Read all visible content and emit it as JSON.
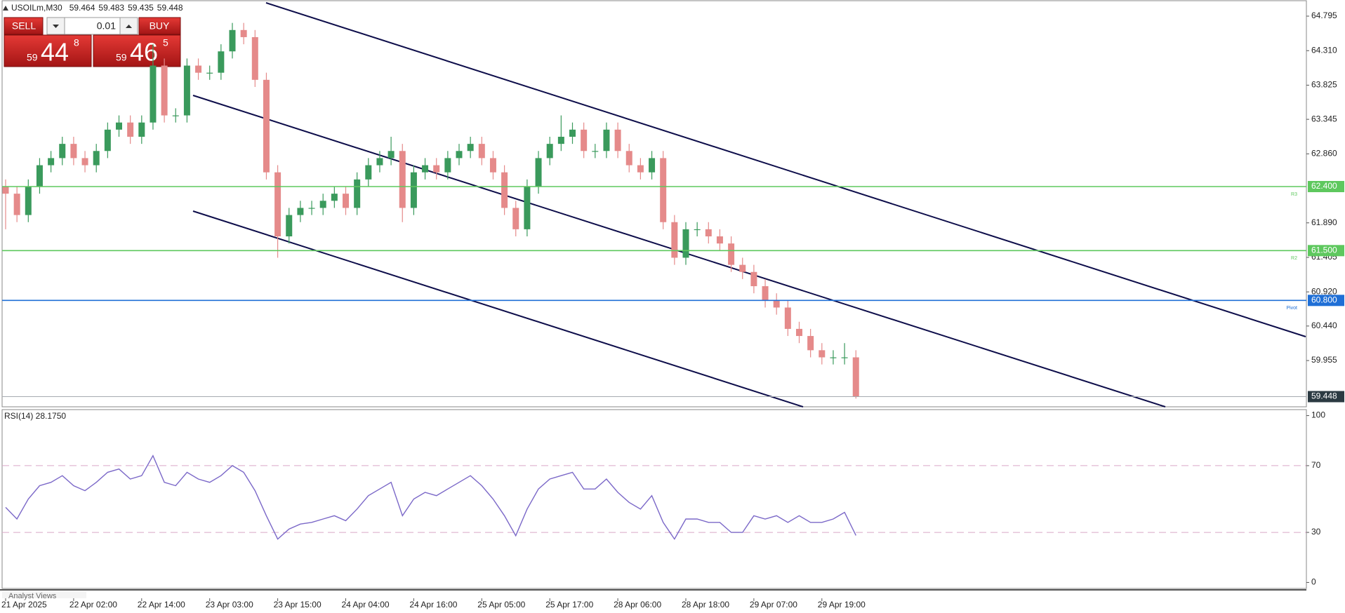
{
  "header": {
    "symbol": "USOILm,M30",
    "ohlc": [
      59.464,
      59.483,
      59.435,
      59.448
    ]
  },
  "trade_panel": {
    "sell": "SELL",
    "lot": "0.01",
    "buy": "BUY",
    "sell_price": [
      "59",
      "44",
      "8"
    ],
    "buy_price": [
      "59",
      "46",
      "5"
    ]
  },
  "chart_data": [
    {
      "type": "candlestick",
      "categories": [
        "21 Apr 2025",
        null,
        null,
        null,
        null,
        null,
        "22 Apr 02:00",
        null,
        null,
        null,
        null,
        null,
        "22 Apr 14:00",
        null,
        null,
        null,
        null,
        null,
        "23 Apr 03:00",
        null,
        null,
        null,
        null,
        null,
        "23 Apr 15:00",
        null,
        null,
        null,
        null,
        null,
        "24 Apr 04:00",
        null,
        null,
        null,
        null,
        null,
        "24 Apr 16:00",
        null,
        null,
        null,
        null,
        null,
        "25 Apr 05:00",
        null,
        null,
        null,
        null,
        null,
        "25 Apr 17:00",
        null,
        null,
        null,
        null,
        null,
        "28 Apr 06:00",
        null,
        null,
        null,
        null,
        null,
        "28 Apr 18:00",
        null,
        null,
        null,
        null,
        null,
        "29 Apr 07:00",
        null,
        null,
        null,
        null,
        null,
        "29 Apr 19:00",
        null,
        null,
        null
      ],
      "open": [
        62.4,
        62.3,
        62.0,
        62.4,
        62.7,
        62.8,
        63.0,
        62.8,
        62.7,
        62.9,
        63.2,
        63.3,
        63.1,
        63.3,
        64.1,
        63.4,
        63.4,
        64.1,
        64.0,
        64.0,
        64.3,
        64.6,
        64.5,
        63.9,
        62.6,
        61.7,
        62.0,
        62.1,
        62.1,
        62.2,
        62.3,
        62.1,
        62.5,
        62.7,
        62.8,
        62.9,
        62.1,
        62.6,
        62.7,
        62.6,
        62.8,
        62.9,
        63.0,
        62.8,
        62.6,
        62.1,
        61.8,
        62.4,
        62.8,
        63.0,
        63.1,
        63.2,
        62.9,
        62.9,
        63.2,
        62.9,
        62.7,
        62.6,
        62.8,
        61.9,
        61.4,
        61.8,
        61.8,
        61.7,
        61.6,
        61.3,
        61.2,
        61.0,
        60.8,
        60.7,
        60.4,
        60.3,
        60.1,
        60.0,
        60.0,
        60.0
      ],
      "high": [
        62.5,
        62.4,
        62.5,
        62.8,
        62.9,
        63.1,
        63.1,
        62.9,
        63.0,
        63.3,
        63.4,
        63.4,
        63.4,
        64.4,
        64.2,
        63.5,
        64.2,
        64.2,
        64.1,
        64.4,
        64.7,
        64.7,
        64.6,
        64.0,
        62.7,
        62.1,
        62.2,
        62.2,
        62.3,
        62.4,
        62.4,
        62.6,
        62.8,
        62.9,
        63.1,
        63.0,
        62.7,
        62.8,
        62.8,
        62.9,
        63.0,
        63.1,
        63.1,
        62.9,
        62.7,
        62.2,
        62.5,
        62.9,
        63.1,
        63.4,
        63.3,
        63.3,
        63.0,
        63.3,
        63.3,
        63.0,
        62.8,
        62.9,
        62.9,
        62.0,
        61.9,
        61.9,
        61.9,
        61.8,
        61.7,
        61.4,
        61.3,
        61.1,
        60.9,
        60.8,
        60.5,
        60.4,
        60.2,
        60.1,
        60.2,
        60.1
      ],
      "low": [
        61.8,
        61.9,
        61.9,
        62.3,
        62.6,
        62.7,
        62.7,
        62.6,
        62.6,
        62.8,
        63.1,
        63.0,
        63.0,
        63.2,
        63.3,
        63.3,
        63.3,
        63.9,
        63.9,
        63.9,
        64.2,
        64.4,
        63.8,
        62.5,
        61.4,
        61.6,
        61.9,
        62.0,
        62.0,
        62.1,
        62.0,
        62.0,
        62.4,
        62.6,
        62.7,
        61.9,
        62.0,
        62.5,
        62.5,
        62.5,
        62.7,
        62.8,
        62.7,
        62.5,
        62.0,
        61.7,
        61.7,
        62.3,
        62.7,
        62.9,
        63.0,
        62.8,
        62.8,
        62.8,
        62.8,
        62.6,
        62.5,
        62.5,
        61.8,
        61.3,
        61.3,
        61.7,
        61.6,
        61.5,
        61.2,
        61.1,
        60.9,
        60.7,
        60.6,
        60.3,
        60.2,
        60.0,
        59.9,
        59.9,
        59.9,
        59.42
      ],
      "close": [
        62.3,
        62.0,
        62.4,
        62.7,
        62.8,
        63.0,
        62.8,
        62.7,
        62.9,
        63.2,
        63.3,
        63.1,
        63.3,
        64.1,
        63.4,
        63.4,
        64.1,
        64.0,
        64.0,
        64.3,
        64.6,
        64.5,
        63.9,
        62.6,
        61.7,
        62.0,
        62.1,
        62.1,
        62.2,
        62.3,
        62.1,
        62.5,
        62.7,
        62.8,
        62.9,
        62.1,
        62.6,
        62.7,
        62.6,
        62.8,
        62.9,
        63.0,
        62.8,
        62.6,
        62.1,
        61.8,
        62.4,
        62.8,
        63.0,
        63.1,
        63.2,
        62.9,
        62.9,
        63.2,
        62.9,
        62.7,
        62.6,
        62.8,
        61.9,
        61.4,
        61.8,
        61.8,
        61.7,
        61.6,
        61.3,
        61.2,
        61.0,
        60.8,
        60.7,
        60.4,
        60.3,
        60.1,
        60.0,
        60.0,
        60.0,
        59.448
      ],
      "up_color": "#3a9a5c",
      "down_color": "#e58a8a",
      "ylim": [
        59.305,
        65.012
      ],
      "yticks": [
        64.795,
        {
          "value": 64.31,
          "label": "64.310"
        },
        63.825,
        63.345,
        {
          "value": 62.86,
          "label": "62.860"
        },
        {
          "value": 61.89,
          "label": "61.890"
        },
        61.405,
        {
          "value": 60.92,
          "label": "60.920"
        },
        {
          "value": 60.44,
          "label": "60.440"
        },
        59.955
      ],
      "levels": [
        {
          "value": 62.4,
          "label": "62.400",
          "name": "R3",
          "color": "#5ec85e"
        },
        {
          "value": 61.5,
          "label": "61.500",
          "name": "R2",
          "color": "#5ec85e"
        },
        {
          "value": 60.8,
          "label": "60.800",
          "name": "Pivot",
          "color": "#1f6fd6"
        }
      ],
      "current_price": {
        "value": 59.448,
        "label": "59.448",
        "color": "#a6abb0",
        "box_color": "#2b3a42"
      }
    },
    {
      "type": "line",
      "title": "RSI(14) 28.1750",
      "series": [
        {
          "color": "#7b68c8",
          "values": [
            45,
            38,
            50,
            58,
            60,
            64,
            58,
            55,
            60,
            66,
            68,
            62,
            64,
            76,
            60,
            58,
            66,
            62,
            60,
            64,
            70,
            66,
            55,
            40,
            26,
            32,
            35,
            36,
            38,
            40,
            37,
            44,
            52,
            56,
            60,
            40,
            50,
            54,
            52,
            56,
            60,
            64,
            58,
            50,
            40,
            28,
            44,
            56,
            62,
            64,
            66,
            56,
            56,
            62,
            54,
            48,
            44,
            52,
            36,
            26,
            38,
            38,
            36,
            36,
            30,
            30,
            40,
            38,
            40,
            36,
            40,
            36,
            36,
            38,
            42,
            28.175
          ]
        }
      ],
      "ylim": [
        -3.6,
        103.6
      ],
      "yticks": [
        0,
        30,
        70,
        100
      ],
      "levels": [
        30,
        70
      ],
      "level_color": "#d9a6c8"
    }
  ],
  "footer": {
    "panel_tab": "Analyst Views"
  }
}
